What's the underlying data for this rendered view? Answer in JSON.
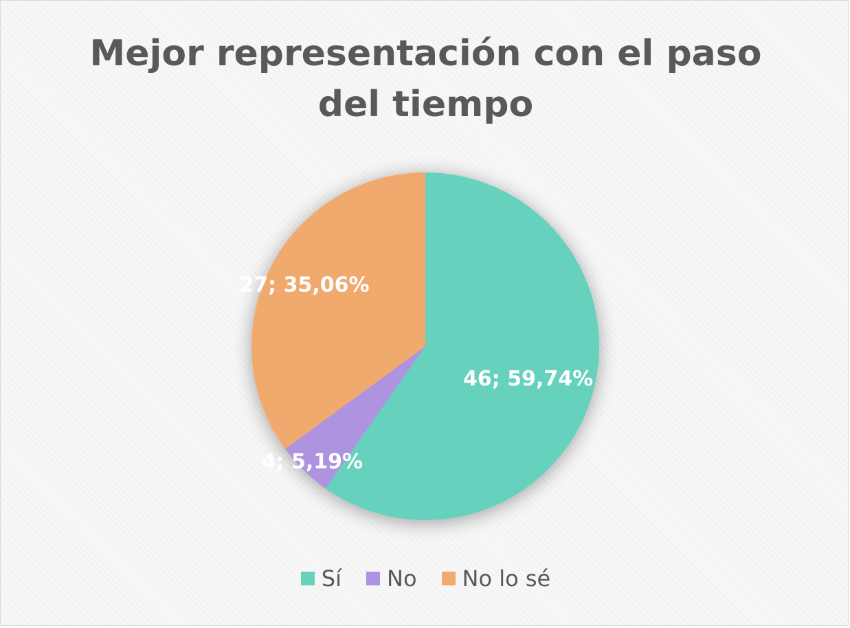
{
  "chart_data": {
    "type": "pie",
    "title": "Mejor representación con el paso del tiempo",
    "categories": [
      "Sí",
      "No",
      "No lo sé"
    ],
    "values": [
      46,
      4,
      27
    ],
    "percent_labels": [
      "59,74%",
      "5,19%",
      "35,06%"
    ],
    "data_labels": [
      "46; 59,74%",
      "4; 5,19%",
      "27; 35,06%"
    ],
    "colors": [
      "#66d1bd",
      "#ae93e0",
      "#f0aa6e"
    ],
    "legend_position": "bottom",
    "start_angle": "12 o'clock, clockwise"
  }
}
